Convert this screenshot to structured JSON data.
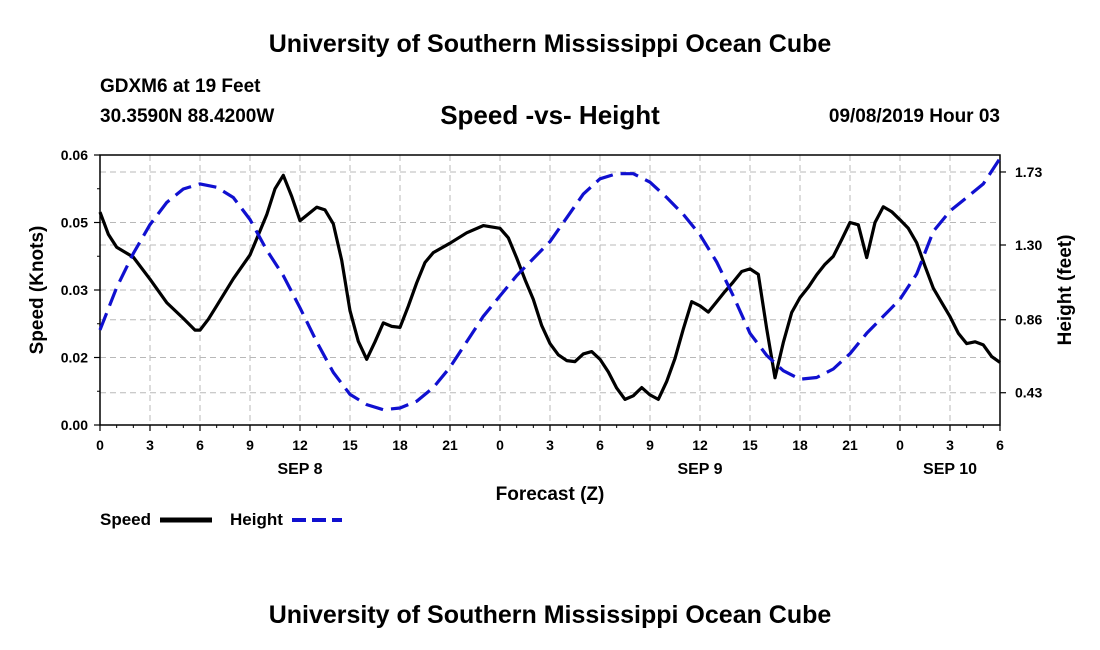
{
  "header": {
    "title": "University of Southern Mississippi Ocean Cube",
    "station": "GDXM6 at 19 Feet",
    "coords": "30.3590N 88.4200W",
    "subtitle": "Speed -vs- Height",
    "datetime": "09/08/2019 Hour 03"
  },
  "footer": {
    "title": "University of Southern Mississippi Ocean Cube"
  },
  "legend": {
    "speed_label": "Speed",
    "height_label": "Height"
  },
  "colors": {
    "speed": "#000000",
    "height": "#1010d0",
    "grid": "#b8b8b8"
  },
  "chart_data": {
    "type": "line",
    "title": "Speed -vs- Height",
    "xlabel": "Forecast (Z)",
    "ylabel": "Speed (Knots)",
    "y2label": "Height (feet)",
    "xlim": [
      0,
      54
    ],
    "ylim": [
      0,
      0.06
    ],
    "y2lim": [
      0.24,
      1.83
    ],
    "x_ticks": [
      0,
      3,
      6,
      9,
      12,
      15,
      18,
      21,
      24,
      27,
      30,
      33,
      36,
      39,
      42,
      45,
      48,
      51,
      54
    ],
    "x_tick_labels": [
      "0",
      "3",
      "6",
      "9",
      "12",
      "15",
      "18",
      "21",
      "0",
      "3",
      "6",
      "9",
      "12",
      "15",
      "18",
      "21",
      "0",
      "3",
      "6"
    ],
    "y_ticks": [
      0,
      0.015,
      0.03,
      0.045,
      0.06
    ],
    "y_tick_labels": [
      "0.00",
      "0.02",
      "0.03",
      "0.05",
      "0.06"
    ],
    "y2_ticks": [
      0.43,
      0.86,
      1.3,
      1.73
    ],
    "y2_tick_labels": [
      "0.43",
      "0.86",
      "1.30",
      "1.73"
    ],
    "date_labels": [
      {
        "x": 12,
        "label": "SEP 8"
      },
      {
        "x": 36,
        "label": "SEP 9"
      },
      {
        "x": 51,
        "label": "SEP 10"
      }
    ],
    "grid": true,
    "series": [
      {
        "name": "Speed",
        "axis": "left",
        "x": [
          0,
          0.5,
          1,
          2,
          3,
          4,
          5,
          5.7,
          6,
          6.5,
          7,
          8,
          9,
          10,
          10.5,
          11,
          11.5,
          12,
          13,
          13.5,
          14,
          14.5,
          15,
          15.5,
          16,
          16.5,
          17,
          17.5,
          18,
          18.5,
          19,
          19.5,
          20,
          21,
          22,
          23,
          24,
          24.5,
          25,
          25.5,
          26,
          26.5,
          27,
          27.5,
          28,
          28.5,
          29,
          29.5,
          30,
          30.5,
          31,
          31.5,
          32,
          32.5,
          33,
          33.5,
          34,
          34.5,
          35,
          35.5,
          36,
          36.5,
          37,
          37.5,
          38,
          38.5,
          39,
          39.5,
          40,
          40.5,
          41,
          41.5,
          42,
          42.5,
          43,
          43.5,
          44,
          44.5,
          45,
          45.5,
          46,
          46.5,
          47,
          47.5,
          48,
          48.5,
          49,
          49.5,
          50,
          50.5,
          51,
          51.5,
          52,
          52.5,
          53,
          53.5,
          54
        ],
        "values": [
          0.0473,
          0.0424,
          0.0395,
          0.0373,
          0.0324,
          0.0272,
          0.0237,
          0.0211,
          0.0211,
          0.0235,
          0.0265,
          0.0325,
          0.0378,
          0.0467,
          0.0525,
          0.0555,
          0.0508,
          0.0454,
          0.0484,
          0.0478,
          0.0447,
          0.0366,
          0.0254,
          0.0186,
          0.0146,
          0.0185,
          0.0227,
          0.0219,
          0.0217,
          0.0264,
          0.0316,
          0.0361,
          0.0383,
          0.0404,
          0.0427,
          0.0443,
          0.0437,
          0.0416,
          0.0371,
          0.0323,
          0.0279,
          0.0221,
          0.0181,
          0.0156,
          0.0143,
          0.0141,
          0.0158,
          0.0163,
          0.0146,
          0.0118,
          0.0082,
          0.0057,
          0.0065,
          0.0083,
          0.0067,
          0.0057,
          0.0097,
          0.0148,
          0.0213,
          0.0274,
          0.0265,
          0.0251,
          0.0274,
          0.0297,
          0.0318,
          0.0341,
          0.0347,
          0.0335,
          0.0214,
          0.0105,
          0.0183,
          0.025,
          0.0283,
          0.0306,
          0.0334,
          0.0357,
          0.0375,
          0.0412,
          0.045,
          0.0445,
          0.0372,
          0.045,
          0.0485,
          0.0474,
          0.0456,
          0.0437,
          0.0405,
          0.0353,
          0.0304,
          0.0272,
          0.0241,
          0.0204,
          0.0181,
          0.0185,
          0.0178,
          0.0152,
          0.0139
        ]
      },
      {
        "name": "Height",
        "axis": "right",
        "x": [
          0,
          1,
          2,
          3,
          4,
          5,
          6,
          7,
          8,
          9,
          10,
          11,
          12,
          13,
          14,
          15,
          16,
          17,
          18,
          19,
          20,
          21,
          22,
          23,
          24,
          25,
          26,
          27,
          28,
          29,
          30,
          31,
          32,
          33,
          34,
          35,
          36,
          37,
          38,
          39,
          40,
          41,
          42,
          43,
          44,
          45,
          46,
          47,
          48,
          49,
          50,
          51,
          52,
          53,
          54
        ],
        "values": [
          0.8,
          1.05,
          1.25,
          1.42,
          1.55,
          1.63,
          1.66,
          1.64,
          1.58,
          1.45,
          1.27,
          1.12,
          0.93,
          0.73,
          0.55,
          0.42,
          0.36,
          0.33,
          0.34,
          0.38,
          0.46,
          0.58,
          0.73,
          0.88,
          1.0,
          1.12,
          1.22,
          1.32,
          1.46,
          1.6,
          1.69,
          1.72,
          1.72,
          1.67,
          1.58,
          1.48,
          1.36,
          1.2,
          1.0,
          0.78,
          0.65,
          0.56,
          0.51,
          0.52,
          0.57,
          0.66,
          0.78,
          0.88,
          0.98,
          1.13,
          1.38,
          1.5,
          1.58,
          1.66,
          1.81
        ]
      }
    ]
  }
}
